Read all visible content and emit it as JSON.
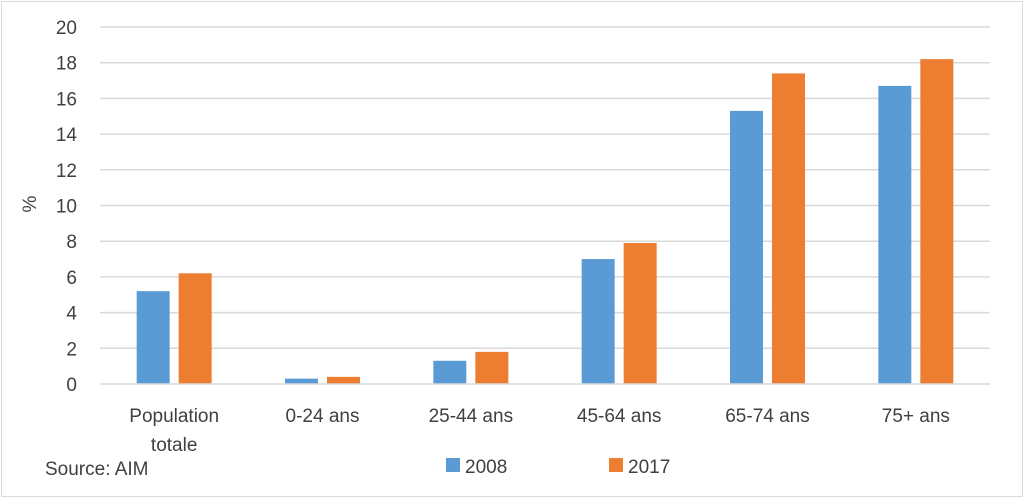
{
  "chart_data": {
    "type": "bar",
    "ylabel": "%",
    "ylim": [
      0,
      20
    ],
    "ytick_step": 2,
    "grid": true,
    "legend_placement": "bottom-center",
    "categories": [
      [
        "Population",
        "totale"
      ],
      [
        "0-24 ans"
      ],
      [
        "25-44 ans"
      ],
      [
        "45-64 ans"
      ],
      [
        "65-74 ans"
      ],
      [
        "75+ ans"
      ]
    ],
    "series": [
      {
        "name": "2008",
        "color": "#5b9bd5",
        "values": [
          5.2,
          0.3,
          1.3,
          7.0,
          15.3,
          16.7
        ]
      },
      {
        "name": "2017",
        "color": "#ed7d31",
        "values": [
          6.2,
          0.4,
          1.8,
          7.9,
          17.4,
          18.2
        ]
      }
    ],
    "source": "Source: AIM"
  }
}
